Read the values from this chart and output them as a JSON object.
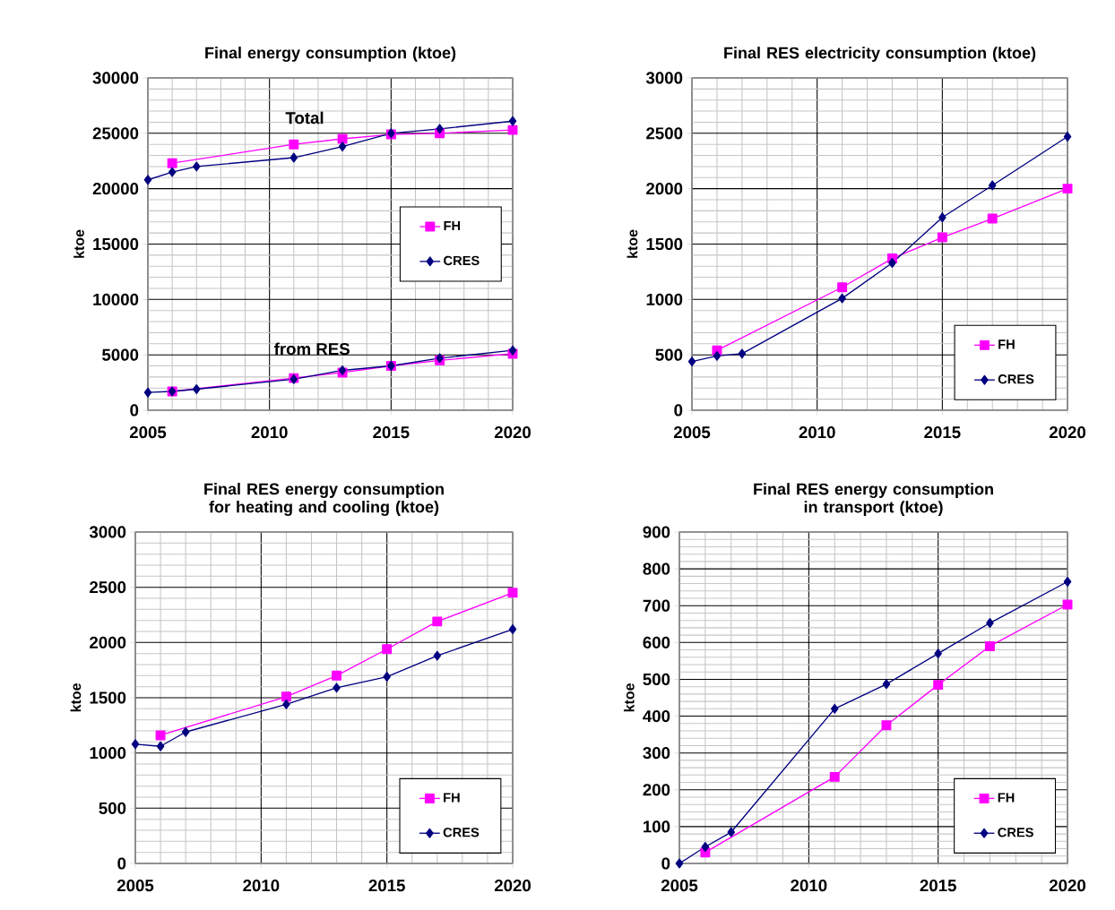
{
  "chart_data": [
    {
      "type": "line",
      "title": "Final energy consumption  (ktoe)",
      "ylabel": "ktoe",
      "xlim": [
        2005,
        2020
      ],
      "xticks": [
        2005,
        2010,
        2015,
        2020
      ],
      "ylim": [
        0,
        30000
      ],
      "yticks": [
        0,
        5000,
        10000,
        15000,
        20000,
        25000,
        30000
      ],
      "grid": true,
      "legend": "right",
      "annotations": [
        "Total",
        "from RES"
      ],
      "series": [
        {
          "name": "FH",
          "color": "#ff00ff",
          "marker": "square",
          "x": [
            2006,
            2011,
            2013,
            2015,
            2017,
            2020
          ],
          "values": [
            22300,
            24000,
            24500,
            24900,
            25000,
            25300
          ]
        },
        {
          "name": "CRES",
          "color": "#000080",
          "marker": "diamond",
          "x": [
            2005,
            2006,
            2007,
            2011,
            2013,
            2015,
            2017,
            2020
          ],
          "values": [
            20800,
            21500,
            22000,
            22800,
            23800,
            25000,
            25400,
            26100
          ]
        },
        {
          "color": "#ff00ff",
          "marker": "square",
          "x": [
            2006,
            2011,
            2013,
            2015,
            2017,
            2020
          ],
          "values": [
            1700,
            2900,
            3400,
            4000,
            4500,
            5100
          ]
        },
        {
          "color": "#000080",
          "marker": "diamond",
          "x": [
            2005,
            2006,
            2007,
            2011,
            2013,
            2015,
            2017,
            2020
          ],
          "values": [
            1600,
            1700,
            1900,
            2800,
            3600,
            4000,
            4700,
            5400
          ]
        }
      ]
    },
    {
      "type": "line",
      "title": "Final RES electricity  consumption  (ktoe)",
      "ylabel": "ktoe",
      "xlim": [
        2005,
        2020
      ],
      "xticks": [
        2005,
        2010,
        2015,
        2020
      ],
      "ylim": [
        0,
        3000
      ],
      "yticks": [
        0,
        500,
        1000,
        1500,
        2000,
        2500,
        3000
      ],
      "grid": true,
      "legend": "bottom right",
      "series": [
        {
          "name": "FH",
          "color": "#ff00ff",
          "marker": "square",
          "x": [
            2006,
            2011,
            2013,
            2015,
            2017,
            2020
          ],
          "values": [
            540,
            1110,
            1370,
            1560,
            1730,
            2000
          ]
        },
        {
          "name": "CRES",
          "color": "#000080",
          "marker": "diamond",
          "x": [
            2005,
            2006,
            2007,
            2011,
            2013,
            2015,
            2017,
            2020
          ],
          "values": [
            440,
            490,
            510,
            1010,
            1330,
            1740,
            2030,
            2470
          ]
        }
      ]
    },
    {
      "type": "line",
      "title": "Final RES energy consumption  for heating and cooling (ktoe)",
      "ylabel": "ktoe",
      "xlim": [
        2005,
        2020
      ],
      "xticks": [
        2005,
        2010,
        2015,
        2020
      ],
      "ylim": [
        0,
        3000
      ],
      "yticks": [
        0,
        500,
        1000,
        1500,
        2000,
        2500,
        3000
      ],
      "grid": true,
      "legend": "bottom right",
      "series": [
        {
          "name": "FH",
          "color": "#ff00ff",
          "marker": "square",
          "x": [
            2006,
            2011,
            2013,
            2015,
            2017,
            2020
          ],
          "values": [
            1160,
            1510,
            1700,
            1940,
            2190,
            2450
          ]
        },
        {
          "name": "CRES",
          "color": "#000080",
          "marker": "diamond",
          "x": [
            2005,
            2006,
            2007,
            2011,
            2013,
            2015,
            2017,
            2020
          ],
          "values": [
            1080,
            1060,
            1190,
            1440,
            1590,
            1690,
            1880,
            2120
          ]
        }
      ]
    },
    {
      "type": "line",
      "title": "Final RES energy consumption  in transport (ktoe)",
      "ylabel": "ktoe",
      "xlim": [
        2005,
        2020
      ],
      "xticks": [
        2005,
        2010,
        2015,
        2020
      ],
      "ylim": [
        0,
        900
      ],
      "yticks": [
        0,
        100,
        200,
        300,
        400,
        500,
        600,
        700,
        800,
        900
      ],
      "grid": true,
      "legend": "bottom right",
      "series": [
        {
          "name": "FH",
          "color": "#ff00ff",
          "marker": "square",
          "x": [
            2006,
            2011,
            2013,
            2015,
            2017,
            2020
          ],
          "values": [
            30,
            235,
            375,
            485,
            590,
            703
          ]
        },
        {
          "name": "CRES",
          "color": "#000080",
          "marker": "diamond",
          "x": [
            2005,
            2006,
            2007,
            2011,
            2013,
            2015,
            2017,
            2020
          ],
          "values": [
            0,
            45,
            85,
            420,
            487,
            570,
            653,
            765
          ]
        }
      ]
    }
  ]
}
